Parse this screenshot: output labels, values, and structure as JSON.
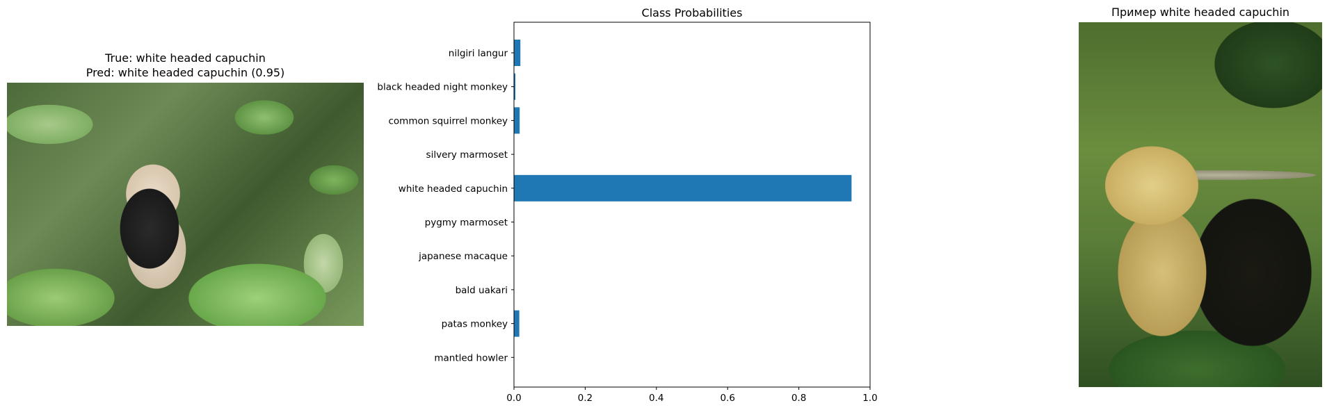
{
  "left_panel": {
    "title_line1": "True: white headed capuchin",
    "title_line2": "Pred: white headed capuchin (0.95)"
  },
  "right_panel": {
    "title": "Пример white headed capuchin"
  },
  "chart_data": {
    "type": "bar",
    "orientation": "horizontal",
    "title": "Class Probabilities",
    "xlabel": "",
    "ylabel": "",
    "xlim": [
      0,
      1.0
    ],
    "xticks": [
      "0.0",
      "0.2",
      "0.4",
      "0.6",
      "0.8",
      "1.0"
    ],
    "grid": false,
    "categories": [
      "nilgiri langur",
      "black headed night monkey",
      "common squirrel monkey",
      "silvery marmoset",
      "white headed capuchin",
      "pygmy marmoset",
      "japanese macaque",
      "bald uakari",
      "patas monkey",
      "mantled howler"
    ],
    "values": [
      0.018,
      0.004,
      0.016,
      0.001,
      0.948,
      0.001,
      0.001,
      0.001,
      0.015,
      0.001
    ],
    "bar_color": "#1f77b4"
  }
}
